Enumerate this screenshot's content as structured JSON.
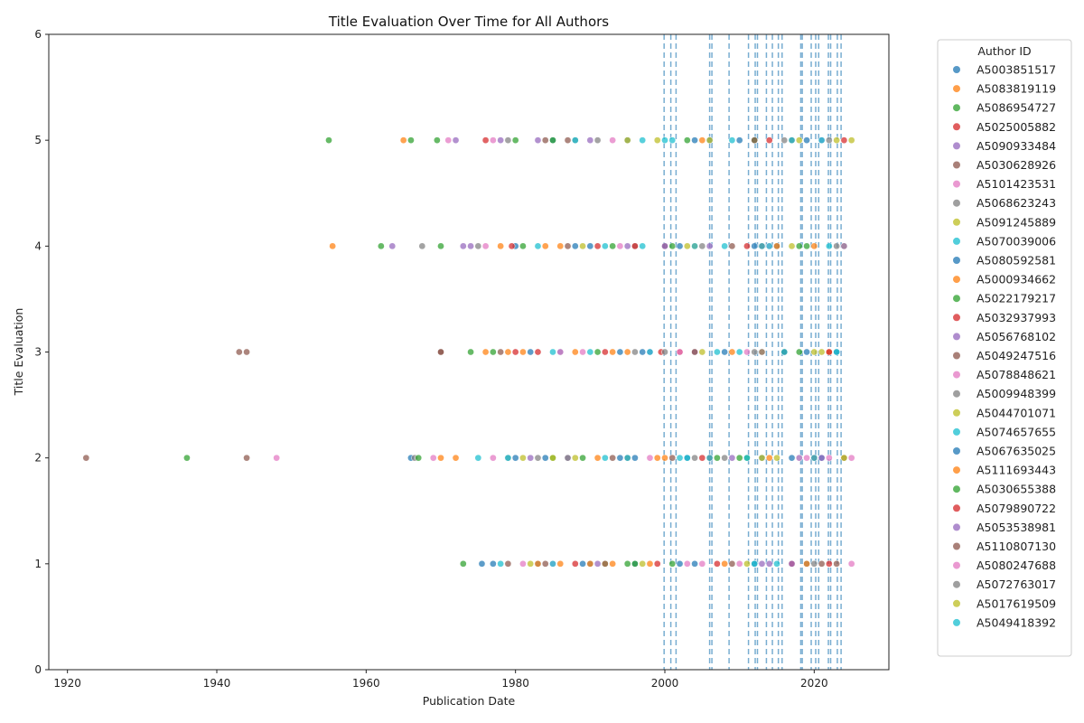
{
  "chart_data": {
    "type": "scatter",
    "title": "Title Evaluation Over Time for All Authors",
    "xlabel": "Publication Date",
    "ylabel": "Title Evaluation",
    "xlim": [
      1917.5,
      2030
    ],
    "ylim": [
      0,
      6
    ],
    "x_ticks": [
      1920,
      1940,
      1960,
      1980,
      2000,
      2020
    ],
    "y_ticks": [
      0,
      1,
      2,
      3,
      4,
      5,
      6
    ],
    "grid": false,
    "legend": {
      "title": "Author ID",
      "position": "outside-right"
    },
    "palette": [
      "#1f77b4",
      "#ff7f0e",
      "#2ca02c",
      "#d62728",
      "#9467bd",
      "#8c564b",
      "#e377c2",
      "#7f7f7f",
      "#bcbd22",
      "#17becf"
    ],
    "vertical_reference_lines": [
      1999.9,
      2000.8,
      2001.5,
      2006.0,
      2006.3,
      2008.6,
      2011.2,
      2012.1,
      2012.4,
      2013.6,
      2014.4,
      2015.2,
      2015.7,
      2018.2,
      2018.4,
      2019.6,
      2020.2,
      2020.6,
      2021.9,
      2022.2,
      2023.1,
      2023.6
    ],
    "series": [
      {
        "name": "A5003851517",
        "color": "#1f77b4",
        "points": [
          [
            1975.5,
            1
          ],
          [
            1977,
            1
          ],
          [
            1983,
            1
          ],
          [
            1990,
            1
          ],
          [
            1996,
            1
          ],
          [
            2004,
            1
          ],
          [
            2012,
            1
          ],
          [
            2019,
            1
          ],
          [
            1966,
            2
          ],
          [
            1984,
            2
          ],
          [
            1994,
            2
          ],
          [
            2003,
            2
          ],
          [
            2013,
            2
          ],
          [
            2021,
            2
          ],
          [
            1986,
            3
          ],
          [
            1997,
            3
          ],
          [
            2008,
            3
          ],
          [
            2016,
            3
          ],
          [
            1980,
            4
          ],
          [
            1990,
            4
          ],
          [
            2002,
            4
          ],
          [
            2015,
            4
          ],
          [
            1985,
            5
          ],
          [
            1995,
            5
          ],
          [
            2006,
            5
          ],
          [
            2019,
            5
          ]
        ]
      },
      {
        "name": "A5083819119",
        "color": "#ff7f0e",
        "points": [
          [
            1955.5,
            4
          ],
          [
            1965,
            5
          ],
          [
            1970,
            2
          ],
          [
            1978,
            4
          ],
          [
            1981,
            3
          ],
          [
            1983,
            1
          ],
          [
            1986,
            1
          ],
          [
            1988,
            3
          ],
          [
            1990,
            1
          ],
          [
            1993,
            1
          ],
          [
            1995,
            3
          ],
          [
            1999,
            2
          ],
          [
            2004,
            4
          ],
          [
            2009,
            3
          ],
          [
            2014,
            2
          ],
          [
            2019,
            1
          ]
        ]
      },
      {
        "name": "A5086954727",
        "color": "#2ca02c",
        "points": [
          [
            1936,
            2
          ],
          [
            1955,
            5
          ],
          [
            1962,
            4
          ],
          [
            1966,
            5
          ],
          [
            1970,
            4
          ],
          [
            1973,
            1
          ],
          [
            1980,
            5
          ],
          [
            1985,
            2
          ],
          [
            1991,
            3
          ],
          [
            1996,
            1
          ],
          [
            2001,
            4
          ],
          [
            2007,
            2
          ],
          [
            2012,
            5
          ],
          [
            2018,
            3
          ]
        ]
      },
      {
        "name": "A5025005882",
        "color": "#d62728",
        "points": [
          [
            1976,
            5
          ],
          [
            1979.5,
            4
          ],
          [
            1992,
            3
          ],
          [
            1999,
            1
          ],
          [
            2002,
            3
          ],
          [
            2006,
            2
          ],
          [
            2011,
            4
          ],
          [
            2017,
            1
          ],
          [
            2022,
            1
          ],
          [
            2024,
            5
          ]
        ]
      },
      {
        "name": "A5090933484",
        "color": "#9467bd",
        "points": [
          [
            1963.5,
            4
          ],
          [
            1972,
            5
          ],
          [
            1978,
            5
          ],
          [
            1987,
            2
          ],
          [
            1995,
            4
          ],
          [
            2004,
            3
          ],
          [
            2013,
            1
          ],
          [
            2021,
            2
          ]
        ]
      },
      {
        "name": "A5030628926",
        "color": "#8c564b",
        "points": [
          [
            1922.5,
            2
          ],
          [
            1943,
            3
          ],
          [
            1944,
            3
          ],
          [
            1944,
            2
          ],
          [
            1970,
            3
          ],
          [
            1984,
            1
          ],
          [
            1987,
            5
          ],
          [
            1993,
            2
          ],
          [
            2000,
            4
          ],
          [
            2009,
            1
          ],
          [
            2016,
            3
          ],
          [
            2023,
            1
          ]
        ]
      },
      {
        "name": "A5101423531",
        "color": "#e377c2",
        "points": [
          [
            1948,
            2
          ],
          [
            1971,
            5
          ],
          [
            1976,
            4
          ],
          [
            1981,
            1
          ],
          [
            1989,
            3
          ],
          [
            1998,
            2
          ],
          [
            2005,
            1
          ],
          [
            2014,
            4
          ],
          [
            2022,
            2
          ],
          [
            2025,
            1
          ]
        ]
      },
      {
        "name": "A5068623243",
        "color": "#7f7f7f",
        "points": [
          [
            1967.5,
            4
          ],
          [
            1979,
            2
          ],
          [
            1988,
            5
          ],
          [
            1996,
            4
          ],
          [
            2004,
            2
          ],
          [
            2012,
            3
          ],
          [
            2020,
            1
          ]
        ]
      },
      {
        "name": "A5091245889",
        "color": "#bcbd22",
        "points": [
          [
            1985,
            2
          ],
          [
            1992,
            1
          ],
          [
            1999,
            5
          ],
          [
            2005,
            3
          ],
          [
            2013,
            2
          ],
          [
            2018,
            5
          ],
          [
            2021,
            3
          ],
          [
            2024,
            4
          ],
          [
            2025,
            5
          ]
        ]
      },
      {
        "name": "A5070039006",
        "color": "#17becf",
        "points": [
          [
            1978,
            1
          ],
          [
            1985,
            3
          ],
          [
            1992,
            2
          ],
          [
            1997,
            4
          ],
          [
            2001,
            5
          ],
          [
            2006,
            2
          ],
          [
            2010,
            3
          ],
          [
            2014,
            4
          ],
          [
            2018,
            2
          ],
          [
            2022,
            4
          ]
        ]
      },
      {
        "name": "A5080592581",
        "color": "#1f77b4",
        "points": [
          [
            1980,
            2
          ],
          [
            1988,
            4
          ],
          [
            1994,
            3
          ],
          [
            2002,
            1
          ],
          [
            2010,
            5
          ],
          [
            2017,
            2
          ],
          [
            2023,
            3
          ]
        ]
      },
      {
        "name": "A5000934662",
        "color": "#ff7f0e",
        "points": [
          [
            1972,
            2
          ],
          [
            1979,
            3
          ],
          [
            1986,
            4
          ],
          [
            1993,
            3
          ],
          [
            2000,
            2
          ],
          [
            2008,
            1
          ],
          [
            2015,
            4
          ],
          [
            2022,
            3
          ]
        ]
      },
      {
        "name": "A5022179217",
        "color": "#2ca02c",
        "points": [
          [
            1969.5,
            5
          ],
          [
            1974,
            3
          ],
          [
            1981,
            4
          ],
          [
            1989,
            2
          ],
          [
            1995,
            1
          ],
          [
            2003,
            5
          ],
          [
            2011,
            2
          ],
          [
            2019,
            4
          ]
        ]
      },
      {
        "name": "A5032937993",
        "color": "#d62728",
        "points": [
          [
            1983,
            3
          ],
          [
            1991,
            4
          ],
          [
            1999.5,
            3
          ],
          [
            2007,
            1
          ],
          [
            2013,
            4
          ],
          [
            2020,
            2
          ]
        ]
      },
      {
        "name": "A5056768102",
        "color": "#9467bd",
        "points": [
          [
            1973,
            4
          ],
          [
            1982,
            2
          ],
          [
            1990,
            5
          ],
          [
            1998,
            3
          ],
          [
            2006,
            4
          ],
          [
            2014,
            1
          ],
          [
            2021,
            5
          ]
        ]
      },
      {
        "name": "A5049247516",
        "color": "#8c564b",
        "points": [
          [
            1978,
            3
          ],
          [
            1984,
            5
          ],
          [
            1992,
            1
          ],
          [
            2001,
            2
          ],
          [
            2009,
            4
          ],
          [
            2017,
            5
          ],
          [
            2024,
            2
          ]
        ]
      },
      {
        "name": "A5078848621",
        "color": "#e377c2",
        "points": [
          [
            1969,
            2
          ],
          [
            1977,
            5
          ],
          [
            1986,
            3
          ],
          [
            1994,
            4
          ],
          [
            2003,
            1
          ],
          [
            2011,
            3
          ],
          [
            2019,
            2
          ]
        ]
      },
      {
        "name": "A5009948399",
        "color": "#7f7f7f",
        "points": [
          [
            1966.5,
            2
          ],
          [
            1975,
            4
          ],
          [
            1983,
            2
          ],
          [
            1991,
            5
          ],
          [
            2000,
            3
          ],
          [
            2008,
            2
          ],
          [
            2016,
            5
          ],
          [
            2023,
            4
          ]
        ]
      },
      {
        "name": "A5044701071",
        "color": "#bcbd22",
        "points": [
          [
            1982,
            1
          ],
          [
            1988,
            2
          ],
          [
            1995,
            5
          ],
          [
            2003,
            4
          ],
          [
            2011,
            1
          ],
          [
            2017,
            4
          ],
          [
            2020,
            3
          ],
          [
            2024,
            2
          ]
        ]
      },
      {
        "name": "A5074657655",
        "color": "#17becf",
        "points": [
          [
            1975,
            2
          ],
          [
            1983,
            4
          ],
          [
            1990,
            3
          ],
          [
            1997,
            5
          ],
          [
            2003,
            2
          ],
          [
            2008,
            4
          ],
          [
            2012,
            1
          ],
          [
            2016,
            3
          ],
          [
            2021,
            5
          ]
        ]
      },
      {
        "name": "A5067635025",
        "color": "#1f77b4",
        "points": [
          [
            1982,
            3
          ],
          [
            1989,
            1
          ],
          [
            1996,
            2
          ],
          [
            2004,
            5
          ],
          [
            2012,
            4
          ],
          [
            2019,
            3
          ]
        ]
      },
      {
        "name": "A5111693443",
        "color": "#ff7f0e",
        "points": [
          [
            1976,
            3
          ],
          [
            1984,
            4
          ],
          [
            1991,
            2
          ],
          [
            1998,
            1
          ],
          [
            2005,
            5
          ],
          [
            2013,
            3
          ],
          [
            2020,
            4
          ]
        ]
      },
      {
        "name": "A5030655388",
        "color": "#2ca02c",
        "points": [
          [
            1967,
            2
          ],
          [
            1977,
            3
          ],
          [
            1985,
            5
          ],
          [
            1993,
            4
          ],
          [
            2001,
            1
          ],
          [
            2010,
            2
          ],
          [
            2018,
            4
          ]
        ]
      },
      {
        "name": "A5079890722",
        "color": "#d62728",
        "points": [
          [
            1980,
            3
          ],
          [
            1988,
            1
          ],
          [
            1996,
            4
          ],
          [
            2005,
            2
          ],
          [
            2014,
            5
          ],
          [
            2022,
            3
          ]
        ]
      },
      {
        "name": "A5053538981",
        "color": "#9467bd",
        "points": [
          [
            1974,
            4
          ],
          [
            1983,
            5
          ],
          [
            1991,
            1
          ],
          [
            2000,
            4
          ],
          [
            2009,
            2
          ],
          [
            2017,
            1
          ],
          [
            2024,
            4
          ]
        ]
      },
      {
        "name": "A5110807130",
        "color": "#8c564b",
        "points": [
          [
            1970,
            3
          ],
          [
            1979,
            1
          ],
          [
            1987,
            4
          ],
          [
            1995,
            2
          ],
          [
            2004,
            3
          ],
          [
            2012,
            5
          ],
          [
            2021,
            1
          ]
        ]
      },
      {
        "name": "A5080247688",
        "color": "#e377c2",
        "points": [
          [
            1977,
            2
          ],
          [
            1985,
            1
          ],
          [
            1993,
            5
          ],
          [
            2002,
            3
          ],
          [
            2010,
            1
          ],
          [
            2018,
            2
          ],
          [
            2025,
            2
          ]
        ]
      },
      {
        "name": "A5072763017",
        "color": "#7f7f7f",
        "points": [
          [
            1979,
            5
          ],
          [
            1987,
            2
          ],
          [
            1996,
            3
          ],
          [
            2005,
            4
          ],
          [
            2013,
            3
          ],
          [
            2022,
            5
          ]
        ]
      },
      {
        "name": "A5017619509",
        "color": "#bcbd22",
        "points": [
          [
            1981,
            2
          ],
          [
            1989,
            4
          ],
          [
            1997,
            1
          ],
          [
            2006,
            5
          ],
          [
            2015,
            2
          ],
          [
            2023,
            5
          ]
        ]
      },
      {
        "name": "A5049418392",
        "color": "#17becf",
        "points": [
          [
            1979,
            2
          ],
          [
            1985,
            1
          ],
          [
            1988,
            5
          ],
          [
            1992,
            4
          ],
          [
            1995,
            2
          ],
          [
            1998,
            3
          ],
          [
            2000,
            5
          ],
          [
            2002,
            2
          ],
          [
            2004,
            4
          ],
          [
            2007,
            3
          ],
          [
            2009,
            5
          ],
          [
            2011,
            2
          ],
          [
            2013,
            4
          ],
          [
            2015,
            1
          ],
          [
            2017,
            5
          ],
          [
            2020,
            2
          ],
          [
            2023,
            3
          ]
        ]
      }
    ]
  }
}
